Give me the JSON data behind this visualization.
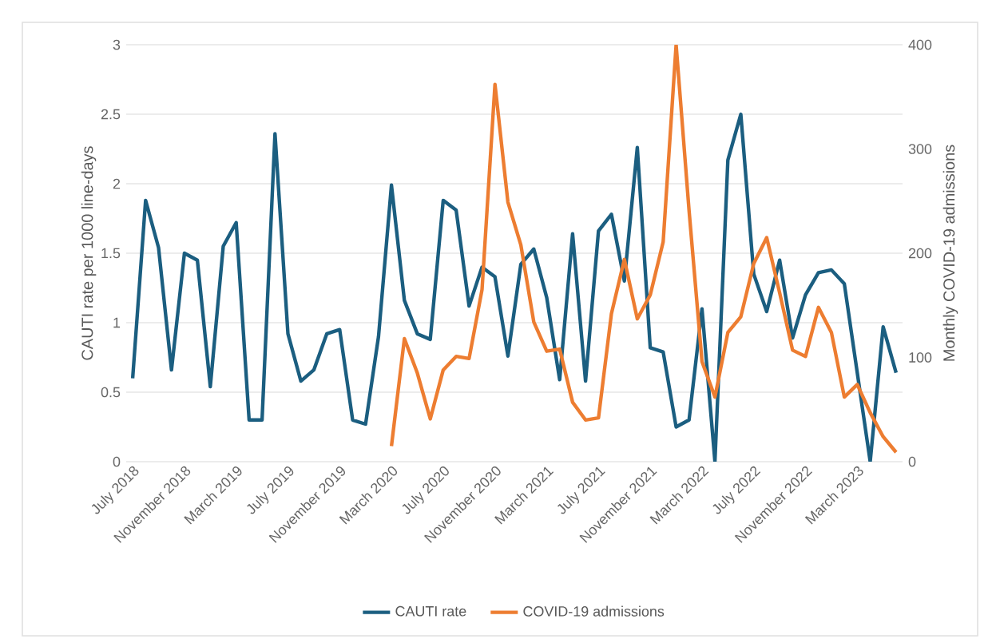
{
  "chart_data": {
    "type": "line",
    "ylabel": "CAUTI rate per 1000 line-days",
    "y2label": "Monthly COVID-19 admissions",
    "categories": [
      "July 2018",
      null,
      null,
      null,
      "November 2018",
      null,
      null,
      null,
      "March 2019",
      null,
      null,
      null,
      "July 2019",
      null,
      null,
      null,
      "November 2019",
      null,
      null,
      null,
      "March 2020",
      null,
      null,
      null,
      "July 2020",
      null,
      null,
      null,
      "November 2020",
      null,
      null,
      null,
      "March 2021",
      null,
      null,
      null,
      "July 2021",
      null,
      null,
      null,
      "November 2021",
      null,
      null,
      null,
      "March 2022",
      null,
      null,
      null,
      "July 2022",
      null,
      null,
      null,
      "November 2022",
      null,
      null,
      null,
      "March 2023",
      null,
      null,
      null
    ],
    "series": [
      {
        "name": "CAUTI rate",
        "color": "#1b5e80",
        "values": [
          0.6,
          1.88,
          1.54,
          0.66,
          1.5,
          1.45,
          0.54,
          1.55,
          1.72,
          0.3,
          0.3,
          2.36,
          0.92,
          0.58,
          0.66,
          0.92,
          0.95,
          0.3,
          0.27,
          0.9,
          1.99,
          1.16,
          0.92,
          0.88,
          1.88,
          1.81,
          1.12,
          1.4,
          1.33,
          0.76,
          1.42,
          1.53,
          1.18,
          0.59,
          1.64,
          0.58,
          1.66,
          1.78,
          1.3,
          2.26,
          0.82,
          0.79,
          0.25,
          0.3,
          1.1,
          0.0,
          2.17,
          2.5,
          1.35,
          1.08,
          1.45,
          0.89,
          1.2,
          1.36,
          1.38,
          1.28,
          0.64,
          0.0,
          0.97,
          0.64
        ]
      },
      {
        "name": "COVID-19 admissions",
        "color": "#ed7d31",
        "axis": "y2",
        "values": [
          null,
          null,
          null,
          null,
          null,
          null,
          null,
          null,
          null,
          null,
          null,
          null,
          null,
          null,
          null,
          null,
          null,
          null,
          null,
          null,
          15,
          118,
          85,
          41,
          88,
          101,
          99,
          165,
          362,
          249,
          208,
          134,
          106,
          108,
          57,
          40,
          42,
          142,
          194,
          137,
          160,
          211,
          400,
          241,
          96,
          62,
          124,
          139,
          190,
          215,
          162,
          107,
          101,
          148,
          124,
          62,
          74,
          47,
          24,
          9
        ]
      }
    ],
    "ylim": [
      0,
      3
    ],
    "yticks": [
      0,
      0.5,
      1,
      1.5,
      2,
      2.5,
      3
    ],
    "y2lim": [
      0,
      400
    ],
    "y2ticks": [
      0,
      100,
      200,
      300,
      400
    ],
    "grid": "y",
    "legend": "bottom",
    "marker": "none",
    "line_style": "solid"
  }
}
